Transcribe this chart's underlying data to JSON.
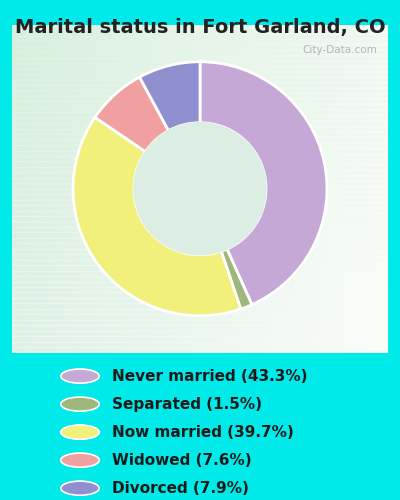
{
  "title": "Marital status in Fort Garland, CO",
  "slices": [
    43.3,
    1.5,
    39.7,
    7.6,
    7.9
  ],
  "colors": [
    "#c5a8d5",
    "#9db87a",
    "#f0f07a",
    "#f0a0a0",
    "#9090d0"
  ],
  "labels": [
    "Never married (43.3%)",
    "Separated (1.5%)",
    "Now married (39.7%)",
    "Widowed (7.6%)",
    "Divorced (7.9%)"
  ],
  "bg_outer": "#00eaea",
  "bg_chart_tl": "#d0ece0",
  "bg_chart_br": "#f0fff8",
  "watermark": "City-Data.com",
  "title_color": "#222222",
  "legend_text_color": "#1a1a1a",
  "title_fontsize": 14,
  "legend_fontsize": 11
}
